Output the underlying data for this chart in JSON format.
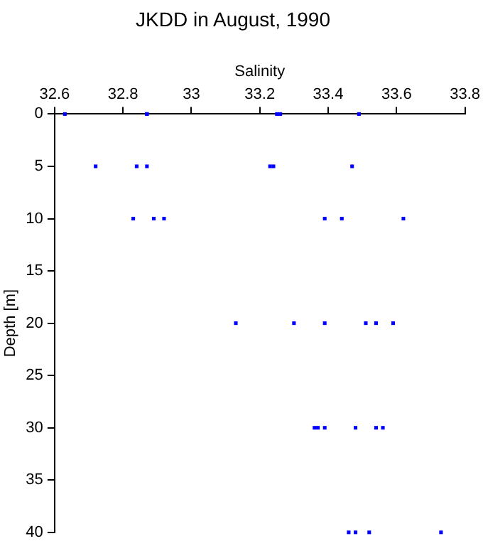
{
  "chart_data": {
    "type": "scatter",
    "title": "JKDD in August, 1990",
    "xlabel": "Salinity",
    "ylabel": "Depth [m]",
    "x": [
      32.63,
      32.87,
      32.87,
      33.25,
      33.26,
      33.49,
      32.72,
      32.84,
      32.87,
      33.23,
      33.24,
      33.47,
      32.83,
      32.89,
      32.92,
      33.39,
      33.44,
      33.62,
      33.13,
      33.3,
      33.39,
      33.51,
      33.54,
      33.59,
      33.36,
      33.37,
      33.39,
      33.48,
      33.54,
      33.56,
      33.46,
      33.48,
      33.52,
      33.73
    ],
    "values": [
      0,
      0,
      0,
      0,
      0,
      0,
      5,
      5,
      5,
      5,
      5,
      5,
      10,
      10,
      10,
      10,
      10,
      10,
      20,
      20,
      20,
      20,
      20,
      20,
      30,
      30,
      30,
      30,
      30,
      30,
      40,
      40,
      40,
      40
    ],
    "color": "#0000ff",
    "marker": "square",
    "grid": false,
    "legend": false,
    "xlim": [
      32.6,
      33.8
    ],
    "xticks": [
      32.6,
      32.8,
      33,
      33.2,
      33.4,
      33.6,
      33.8
    ],
    "ylim": [
      40,
      0
    ],
    "yticks": [
      0,
      5,
      10,
      15,
      20,
      25,
      30,
      35,
      40
    ]
  }
}
